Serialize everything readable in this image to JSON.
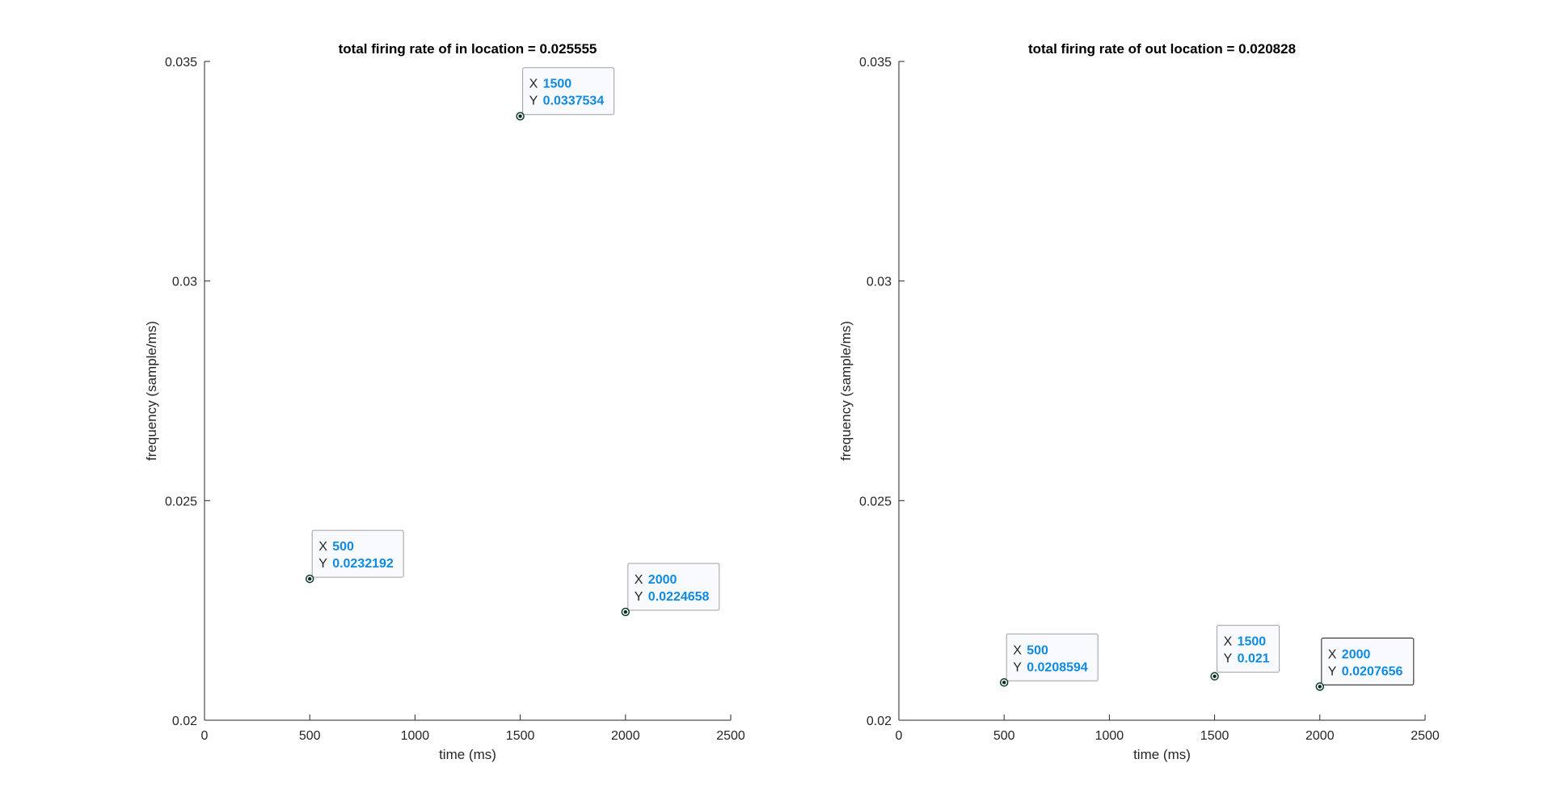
{
  "colors": {
    "axis": "#262626",
    "datatip_value": "#0e8be0",
    "marker": "#0b3d2e"
  },
  "datatip_keys": {
    "x": "X",
    "y": "Y"
  },
  "chart_data": [
    {
      "type": "scatter",
      "title": "total firing rate of in location = 0.025555",
      "xlabel": "time (ms)",
      "ylabel": "frequency (sample/ms)",
      "xlim": [
        0,
        2500
      ],
      "ylim": [
        0.02,
        0.035
      ],
      "xticks": [
        "0",
        "500",
        "1000",
        "1500",
        "2000",
        "2500"
      ],
      "yticks": [
        "0.02",
        "0.025",
        "0.03",
        "0.035"
      ],
      "x": [
        500,
        1500,
        2000
      ],
      "y": [
        0.0232192,
        0.0337534,
        0.0224658
      ],
      "datatips": [
        {
          "x_label": "500",
          "y_label": "0.0232192"
        },
        {
          "x_label": "1500",
          "y_label": "0.0337534"
        },
        {
          "x_label": "2000",
          "y_label": "0.0224658"
        }
      ],
      "grid": false
    },
    {
      "type": "scatter",
      "title": "total firing rate of out location = 0.020828",
      "xlabel": "time (ms)",
      "ylabel": "frequency (sample/ms)",
      "xlim": [
        0,
        2500
      ],
      "ylim": [
        0.02,
        0.035
      ],
      "xticks": [
        "0",
        "500",
        "1000",
        "1500",
        "2000",
        "2500"
      ],
      "yticks": [
        "0.02",
        "0.025",
        "0.03",
        "0.035"
      ],
      "x": [
        500,
        1500,
        2000
      ],
      "y": [
        0.0208594,
        0.021,
        0.0207656
      ],
      "datatips": [
        {
          "x_label": "500",
          "y_label": "0.0208594"
        },
        {
          "x_label": "1500",
          "y_label": "0.021"
        },
        {
          "x_label": "2000",
          "y_label": "0.0207656"
        }
      ],
      "grid": false
    }
  ]
}
